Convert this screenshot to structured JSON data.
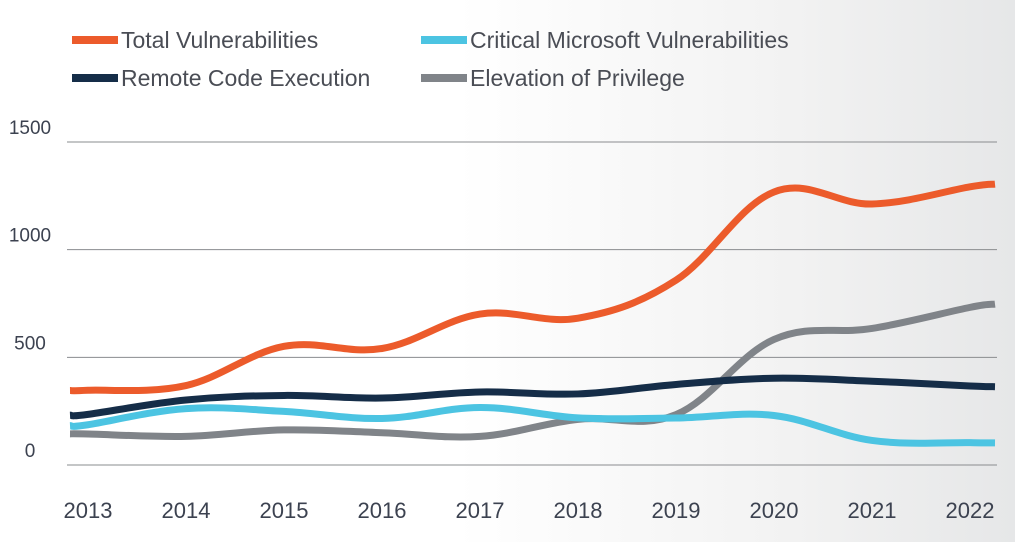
{
  "chart_data": {
    "type": "line",
    "categories": [
      "2013",
      "2014",
      "2015",
      "2016",
      "2017",
      "2018",
      "2019",
      "2020",
      "2021",
      "2022"
    ],
    "ylim": [
      0,
      1500
    ],
    "y_ticks": [
      "1500",
      "1000",
      "500",
      "0"
    ],
    "grid": true,
    "legend_position": "top",
    "series": [
      {
        "name": "Total Vulnerabilities",
        "color": "#ec5b2b",
        "values": [
          347,
          369,
          551,
          541,
          701,
          682,
          858,
          1268,
          1212,
          1292
        ]
      },
      {
        "name": "Critical Microsoft Vulnerabilities",
        "color": "#4cc4e2",
        "values": [
          187,
          262,
          249,
          216,
          267,
          219,
          218,
          230,
          114,
          104
        ]
      },
      {
        "name": "Remote Code Execution",
        "color": "#152d48",
        "values": [
          235,
          302,
          323,
          311,
          339,
          330,
          374,
          403,
          389,
          367
        ]
      },
      {
        "name": "Elevation of Privilege",
        "color": "#808489",
        "values": [
          144,
          133,
          163,
          150,
          133,
          212,
          234,
          583,
          634,
          732
        ]
      }
    ]
  }
}
